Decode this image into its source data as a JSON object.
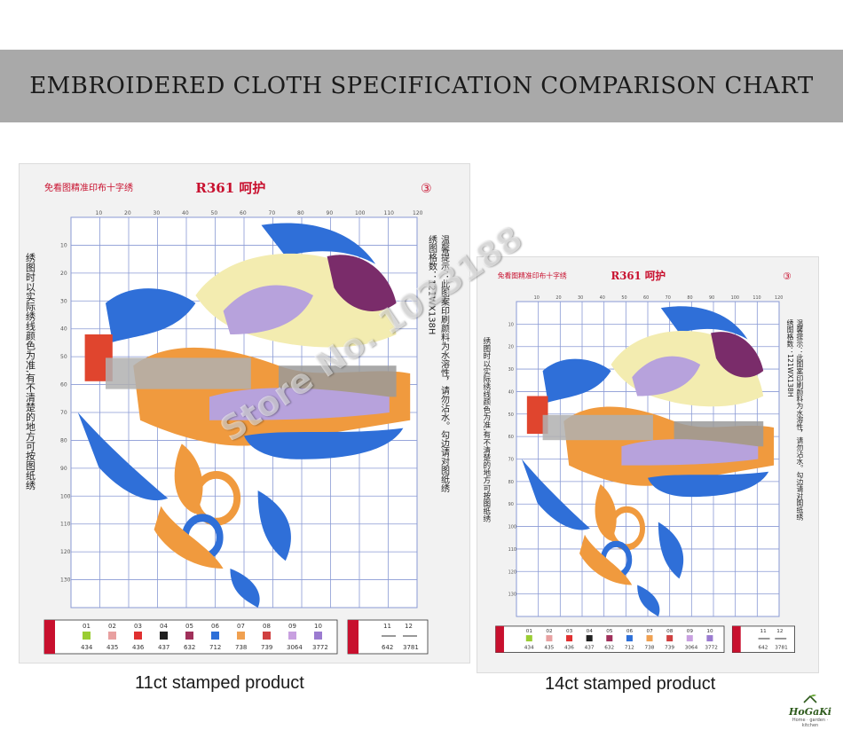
{
  "banner": {
    "title": "EMBROIDERED CLOTH SPECIFICATION COMPARISON CHART"
  },
  "sheets": [
    {
      "header_cn": "免看图精准印布十字绣",
      "code": "R361 呵护",
      "badge": "③",
      "size": "绣图格数：121WX138H",
      "tip": "温馨提示：此图案印刷颜料为水溶性，请勿沾水。勾边请对图纸绣",
      "note": "绣图时以实际绣线颜色为准,有不清楚的地方可按图纸绣",
      "caption": "11ct stamped product"
    },
    {
      "header_cn": "免看图精准印布十字绣",
      "code": "R361 呵护",
      "badge": "③",
      "size": "绣图格数：121WX138H",
      "tip": "温馨提示：此图案印刷颜料为水溶性，请勿沾水。勾边请对图纸绣",
      "note": "绣图时以实际绣线颜色为准,有不清楚的地方可按图纸绣",
      "caption": "14ct stamped product"
    }
  ],
  "ruler": {
    "top": [
      "10",
      "20",
      "30",
      "40",
      "50",
      "60",
      "70",
      "80",
      "90",
      "100",
      "110",
      "120"
    ],
    "left": [
      "10",
      "20",
      "30",
      "40",
      "50",
      "60",
      "70",
      "80",
      "90",
      "100",
      "110",
      "120",
      "130"
    ]
  },
  "legend": {
    "numbers": [
      "01",
      "02",
      "03",
      "04",
      "05",
      "06",
      "07",
      "08",
      "09",
      "10"
    ],
    "codes": [
      "434",
      "435",
      "436",
      "437",
      "632",
      "712",
      "738",
      "739",
      "3064",
      "3772"
    ],
    "swatches": [
      "#9acd32",
      "#e8a0a0",
      "#e03030",
      "#202020",
      "#a0305a",
      "#2d6fd8",
      "#f0a050",
      "#d04040",
      "#c8a0e0",
      "#9b7bd0"
    ],
    "extra_numbers": [
      "11",
      "12"
    ],
    "extra_codes": [
      "642",
      "3781"
    ]
  },
  "colors": {
    "blue": "#2f6fd8",
    "orange": "#f09a3e",
    "cream": "#f3ecb0",
    "lavender": "#b7a2dc",
    "purple": "#7a2c6a",
    "red": "#e0452e",
    "grid": "#8a9ad4",
    "title_red": "#c8102e"
  },
  "watermark": "Store No. 1023188",
  "logo": {
    "name": "HoGaKi",
    "tagline": "Home · garden · kitchen"
  }
}
